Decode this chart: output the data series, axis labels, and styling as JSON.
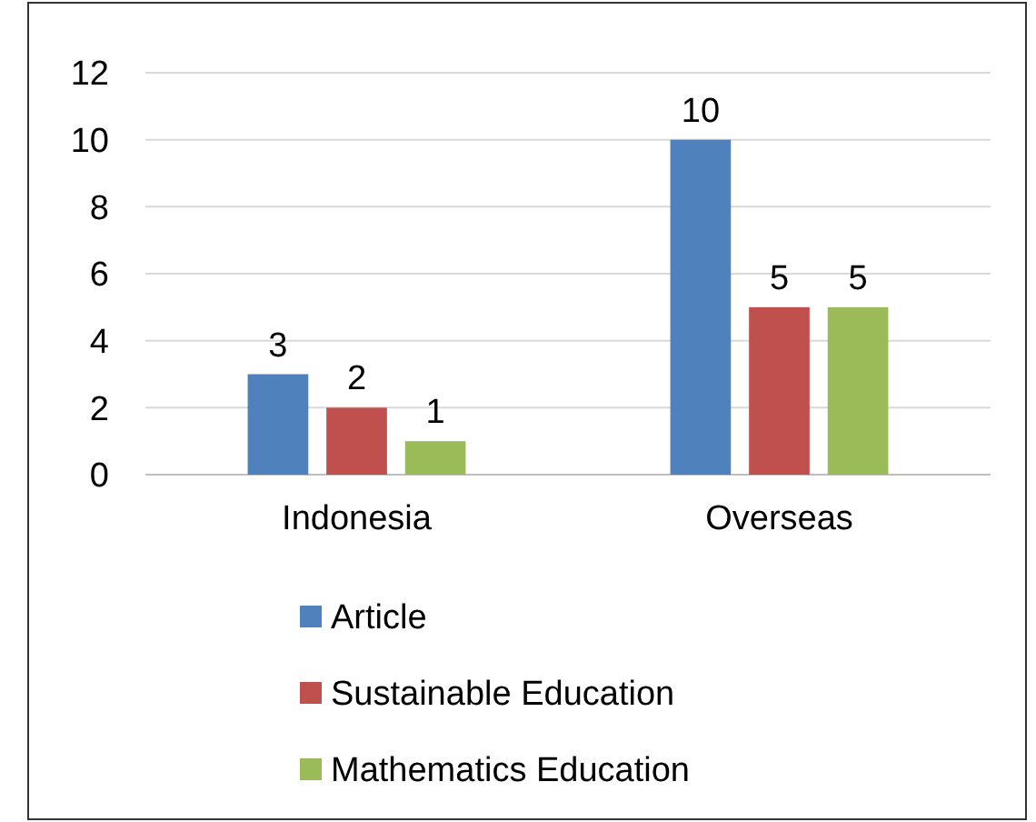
{
  "chart_data": {
    "type": "bar",
    "categories": [
      "Indonesia",
      "Overseas"
    ],
    "series": [
      {
        "name": "Article",
        "color": "#4f81bd",
        "values": [
          3,
          10
        ]
      },
      {
        "name": "Sustainable Education",
        "color": "#c0504d",
        "values": [
          2,
          5
        ]
      },
      {
        "name": "Mathematics Education",
        "color": "#9bbb59",
        "values": [
          1,
          5
        ]
      }
    ],
    "ylim": [
      0,
      12
    ],
    "yticks": [
      0,
      2,
      4,
      6,
      8,
      10,
      12
    ],
    "grid": "y",
    "legend": "bottom",
    "data_labels": true
  }
}
